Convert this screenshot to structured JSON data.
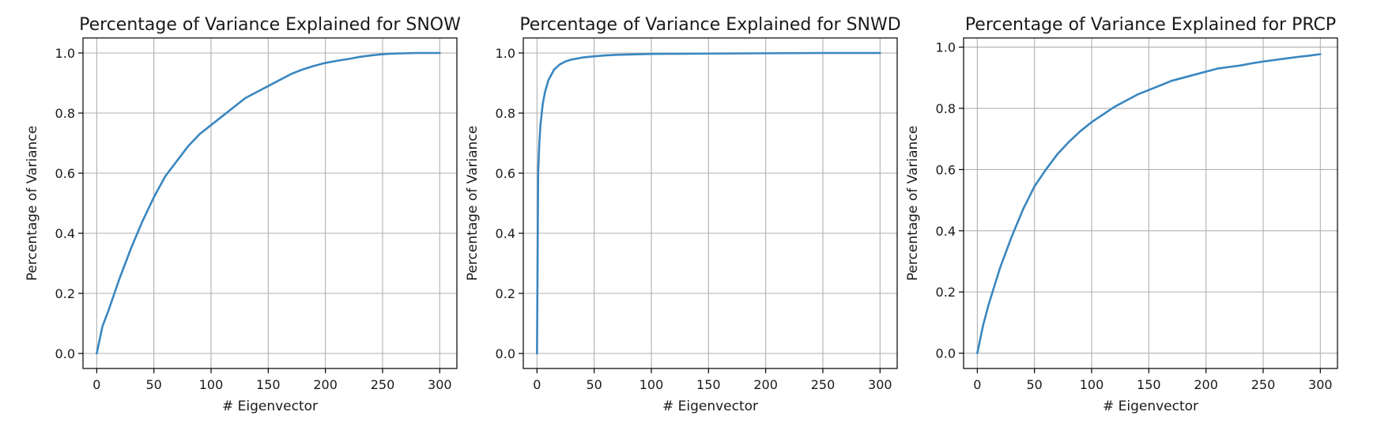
{
  "chart_data": [
    {
      "type": "line",
      "title": "Percentage of Variance Explained for SNOW",
      "xlabel": "# Eigenvector",
      "ylabel": "Percentage of Variance",
      "xlim": [
        -12,
        315
      ],
      "ylim": [
        -0.05,
        1.05
      ],
      "xticks": [
        0,
        50,
        100,
        150,
        200,
        250,
        300
      ],
      "yticks": [
        0.0,
        0.2,
        0.4,
        0.6,
        0.8,
        1.0
      ],
      "xtick_labels": [
        "0",
        "50",
        "100",
        "150",
        "200",
        "250",
        "300"
      ],
      "ytick_labels": [
        "0.0",
        "0.2",
        "0.4",
        "0.6",
        "0.8",
        "1.0"
      ],
      "grid": true,
      "color": "#3a87c0",
      "x": [
        0,
        5,
        10,
        20,
        30,
        40,
        50,
        60,
        70,
        80,
        90,
        100,
        110,
        120,
        130,
        140,
        150,
        160,
        170,
        180,
        190,
        200,
        210,
        220,
        230,
        240,
        250,
        260,
        270,
        280,
        290,
        300
      ],
      "y": [
        0.0,
        0.09,
        0.14,
        0.25,
        0.35,
        0.44,
        0.52,
        0.59,
        0.64,
        0.69,
        0.73,
        0.76,
        0.79,
        0.82,
        0.85,
        0.87,
        0.89,
        0.91,
        0.93,
        0.945,
        0.957,
        0.967,
        0.974,
        0.98,
        0.987,
        0.992,
        0.996,
        0.998,
        0.999,
        1.0,
        1.0,
        1.0
      ]
    },
    {
      "type": "line",
      "title": "Percentage of Variance Explained for SNWD",
      "xlabel": "# Eigenvector",
      "ylabel": "Percentage of Variance",
      "xlim": [
        -12,
        315
      ],
      "ylim": [
        -0.05,
        1.05
      ],
      "xticks": [
        0,
        50,
        100,
        150,
        200,
        250,
        300
      ],
      "yticks": [
        0.0,
        0.2,
        0.4,
        0.6,
        0.8,
        1.0
      ],
      "xtick_labels": [
        "0",
        "50",
        "100",
        "150",
        "200",
        "250",
        "300"
      ],
      "ytick_labels": [
        "0.0",
        "0.2",
        "0.4",
        "0.6",
        "0.8",
        "1.0"
      ],
      "grid": true,
      "color": "#3a87c0",
      "x": [
        0,
        1,
        2,
        3,
        5,
        7,
        10,
        15,
        20,
        25,
        30,
        40,
        50,
        60,
        70,
        80,
        100,
        150,
        200,
        250,
        300
      ],
      "y": [
        0.0,
        0.6,
        0.7,
        0.76,
        0.83,
        0.87,
        0.91,
        0.945,
        0.962,
        0.972,
        0.978,
        0.985,
        0.989,
        0.992,
        0.994,
        0.995,
        0.997,
        0.998,
        0.999,
        1.0,
        1.0
      ]
    },
    {
      "type": "line",
      "title": "Percentage of Variance Explained for PRCP",
      "xlabel": "# Eigenvector",
      "ylabel": "Percentage of Variance",
      "xlim": [
        -12,
        315
      ],
      "ylim": [
        -0.05,
        1.03
      ],
      "xticks": [
        0,
        50,
        100,
        150,
        200,
        250,
        300
      ],
      "yticks": [
        0.0,
        0.2,
        0.4,
        0.6,
        0.8,
        1.0
      ],
      "xtick_labels": [
        "0",
        "50",
        "100",
        "150",
        "200",
        "250",
        "300"
      ],
      "ytick_labels": [
        "0.0",
        "0.2",
        "0.4",
        "0.6",
        "0.8",
        "1.0"
      ],
      "grid": true,
      "color": "#3a87c0",
      "x": [
        0,
        5,
        10,
        20,
        30,
        40,
        50,
        60,
        70,
        80,
        90,
        100,
        110,
        120,
        130,
        140,
        150,
        160,
        170,
        180,
        190,
        200,
        210,
        220,
        230,
        240,
        250,
        260,
        270,
        280,
        290,
        300
      ],
      "y": [
        0.0,
        0.09,
        0.16,
        0.28,
        0.38,
        0.47,
        0.545,
        0.6,
        0.65,
        0.69,
        0.725,
        0.755,
        0.78,
        0.805,
        0.825,
        0.845,
        0.86,
        0.875,
        0.89,
        0.9,
        0.91,
        0.92,
        0.93,
        0.935,
        0.94,
        0.947,
        0.953,
        0.958,
        0.963,
        0.968,
        0.972,
        0.977
      ]
    }
  ]
}
